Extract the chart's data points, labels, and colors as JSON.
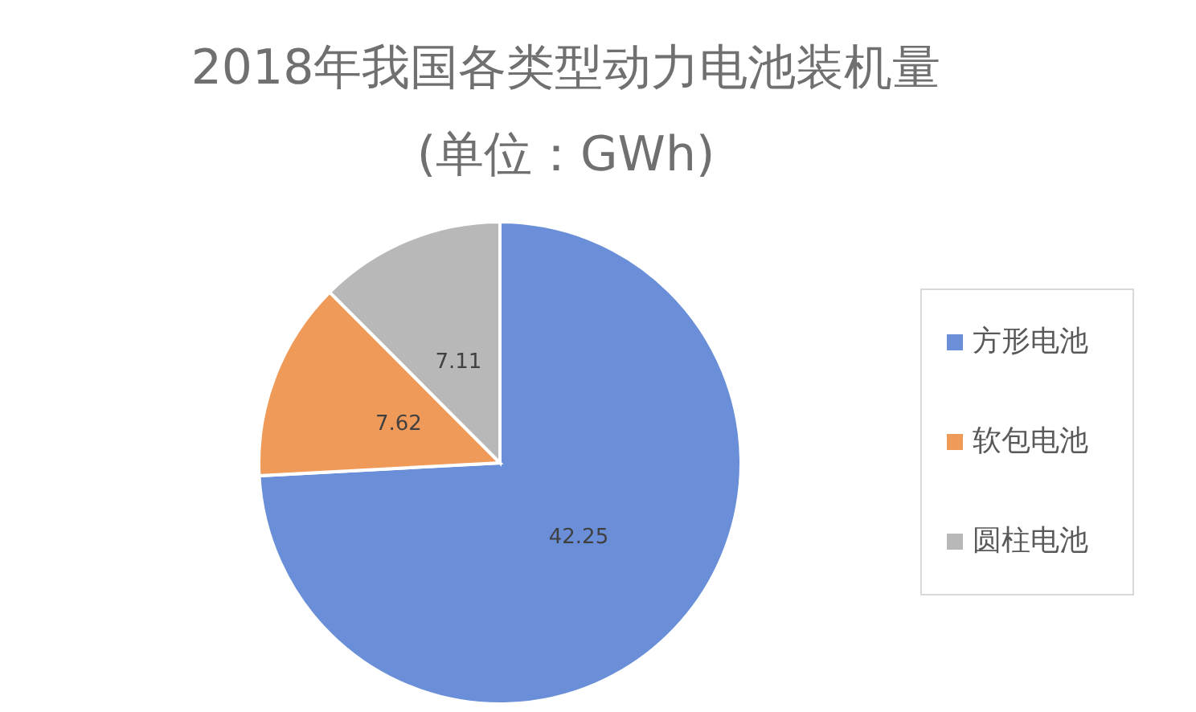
{
  "chart_data": {
    "type": "pie",
    "title": "2018年我国各类型动力电池装机量",
    "subtitle": "(单位：GWh)",
    "categories": [
      "方形电池",
      "软包电池",
      "圆柱电池"
    ],
    "values": [
      42.25,
      7.62,
      7.11
    ],
    "colors": [
      "#6a8fd8",
      "#f09a5a",
      "#b8b8b8"
    ],
    "data_labels": true,
    "legend": "right"
  }
}
